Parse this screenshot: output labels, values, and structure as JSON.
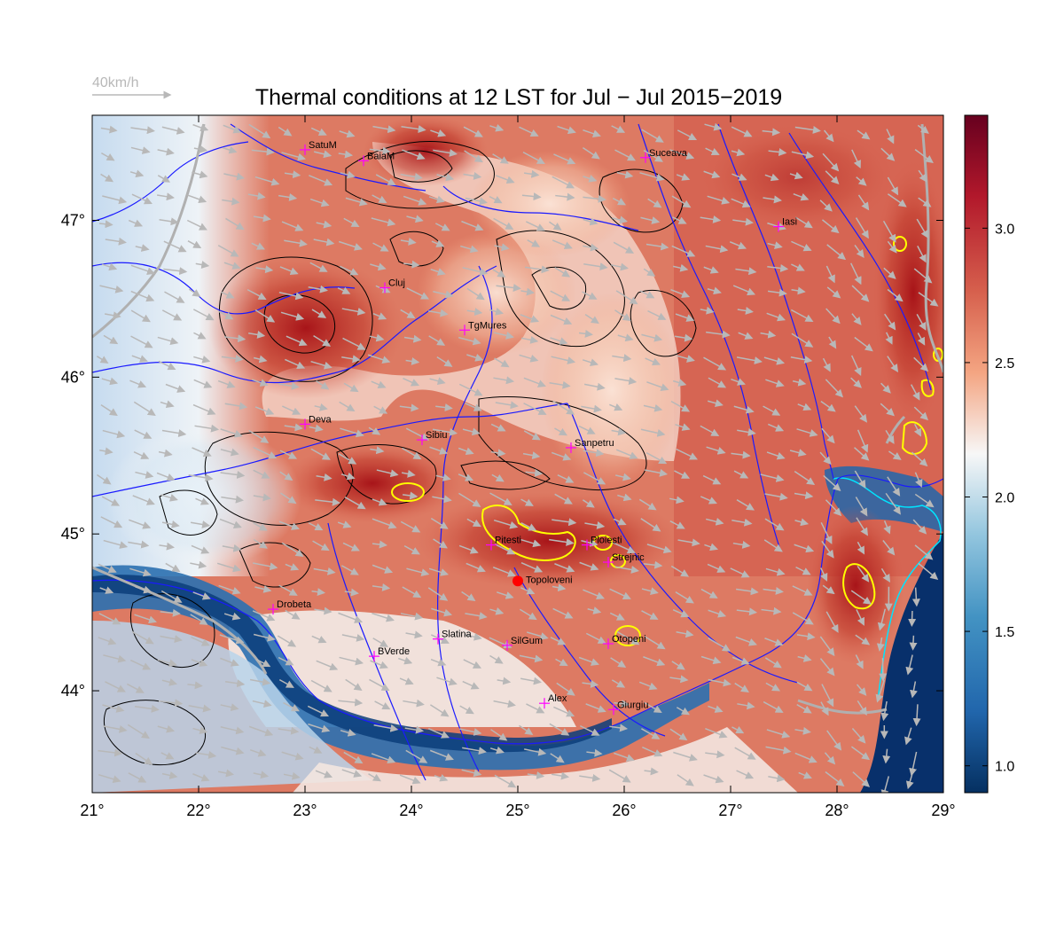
{
  "title": "Thermal conditions at 12 LST for Jul − Jul  2015−2019",
  "wind_scale": {
    "label": "40km/h",
    "color": "#b8b8b8"
  },
  "map": {
    "lon_range": [
      21,
      29
    ],
    "lat_range": [
      43.35,
      47.67
    ],
    "x_ticks": [
      {
        "value": 21,
        "label": "21°"
      },
      {
        "value": 22,
        "label": "22°"
      },
      {
        "value": 23,
        "label": "23°"
      },
      {
        "value": 24,
        "label": "24°"
      },
      {
        "value": 25,
        "label": "25°"
      },
      {
        "value": 26,
        "label": "26°"
      },
      {
        "value": 27,
        "label": "27°"
      },
      {
        "value": 28,
        "label": "28°"
      },
      {
        "value": 29,
        "label": "29°"
      }
    ],
    "y_ticks": [
      {
        "value": 44,
        "label": "44°"
      },
      {
        "value": 45,
        "label": "45°"
      },
      {
        "value": 46,
        "label": "46°"
      },
      {
        "value": 47,
        "label": "47°"
      }
    ]
  },
  "colorbar": {
    "range": [
      0.9,
      3.42
    ],
    "ticks": [
      {
        "value": 1.0,
        "label": "1.0"
      },
      {
        "value": 1.5,
        "label": "1.5"
      },
      {
        "value": 2.0,
        "label": "2.0"
      },
      {
        "value": 2.5,
        "label": "2.5"
      },
      {
        "value": 3.0,
        "label": "3.0"
      }
    ],
    "colors": [
      "#053061",
      "#2166ac",
      "#4393c3",
      "#92c5de",
      "#f7f7f7",
      "#f4a582",
      "#d6604d",
      "#b2182b",
      "#67001f"
    ]
  },
  "colors": {
    "rivers": "#1a1aff",
    "borders": "#b0b0b0",
    "contours": "#000000",
    "high_contours": "#ffff00",
    "coast": "#00e5ff",
    "city_marker": "#ff00ff",
    "highlight_marker": "#ff0000",
    "wind_arrows": "#b8b8b8"
  },
  "cities": [
    {
      "name": "SatuM",
      "lon": 23.0,
      "lat": 47.45
    },
    {
      "name": "BaiaM",
      "lon": 23.55,
      "lat": 47.38
    },
    {
      "name": "Suceava",
      "lon": 26.2,
      "lat": 47.4
    },
    {
      "name": "Iasi",
      "lon": 27.45,
      "lat": 46.96
    },
    {
      "name": "Cluj",
      "lon": 23.75,
      "lat": 46.57
    },
    {
      "name": "TgMures",
      "lon": 24.5,
      "lat": 46.3
    },
    {
      "name": "Deva",
      "lon": 23.0,
      "lat": 45.7
    },
    {
      "name": "Sibiu",
      "lon": 24.1,
      "lat": 45.6
    },
    {
      "name": "Sanpetru",
      "lon": 25.5,
      "lat": 45.55
    },
    {
      "name": "Pitesti",
      "lon": 24.75,
      "lat": 44.93
    },
    {
      "name": "Ploiesti",
      "lon": 25.65,
      "lat": 44.93
    },
    {
      "name": "Strejnic",
      "lon": 25.85,
      "lat": 44.82
    },
    {
      "name": "Drobeta",
      "lon": 22.7,
      "lat": 44.52
    },
    {
      "name": "Slatina",
      "lon": 24.25,
      "lat": 44.33
    },
    {
      "name": "SilGum",
      "lon": 24.9,
      "lat": 44.29
    },
    {
      "name": "BVerde",
      "lon": 23.65,
      "lat": 44.22
    },
    {
      "name": "Otopeni",
      "lon": 25.85,
      "lat": 44.3
    },
    {
      "name": "Alex",
      "lon": 25.25,
      "lat": 43.92
    },
    {
      "name": "Giurgiu",
      "lon": 25.9,
      "lat": 43.88
    }
  ],
  "highlight": {
    "name": "Topoloveni",
    "lon": 25.0,
    "lat": 44.7
  }
}
